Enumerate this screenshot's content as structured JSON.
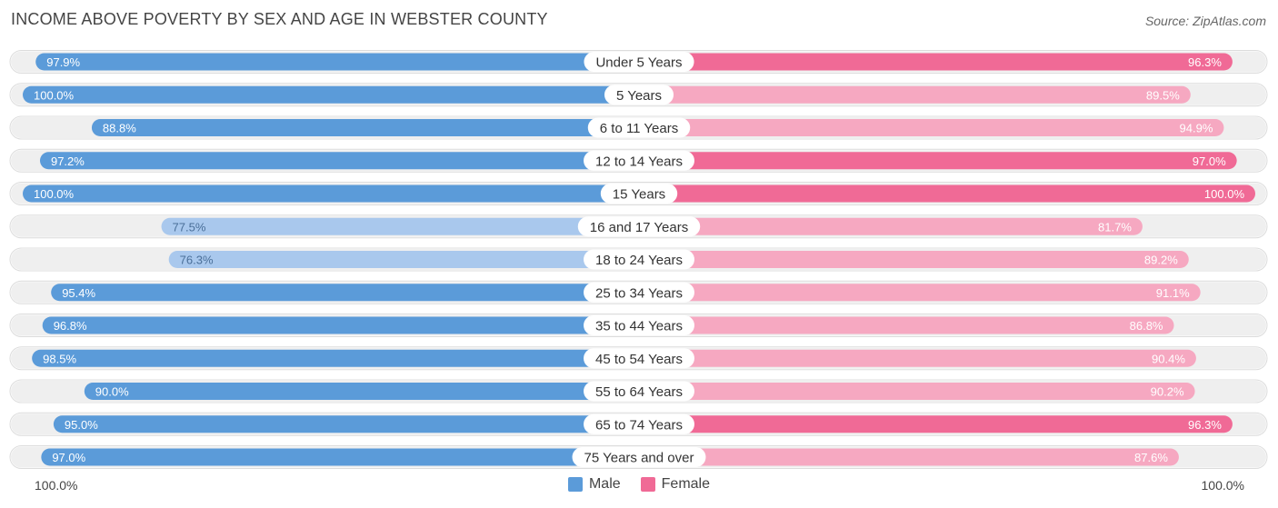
{
  "title": "INCOME ABOVE POVERTY BY SEX AND AGE IN WEBSTER COUNTY",
  "source": "Source: ZipAtlas.com",
  "axis": {
    "left_label": "100.0%",
    "right_label": "100.0%"
  },
  "legend": {
    "male": "Male",
    "female": "Female"
  },
  "colors": {
    "male_strong": "#5b9bd9",
    "male_light": "#a9c8ed",
    "female_strong": "#f06a96",
    "female_light": "#f6a8c1",
    "track": "#efefef"
  },
  "chart_data": {
    "type": "bar",
    "orientation": "horizontal-diverging",
    "xlim": [
      0,
      100
    ],
    "categories": [
      "Under 5 Years",
      "5 Years",
      "6 to 11 Years",
      "12 to 14 Years",
      "15 Years",
      "16 and 17 Years",
      "18 to 24 Years",
      "25 to 34 Years",
      "35 to 44 Years",
      "45 to 54 Years",
      "55 to 64 Years",
      "65 to 74 Years",
      "75 Years and over"
    ],
    "series": [
      {
        "name": "Male",
        "values": [
          97.9,
          100.0,
          88.8,
          97.2,
          100.0,
          77.5,
          76.3,
          95.4,
          96.8,
          98.5,
          90.0,
          95.0,
          97.0
        ]
      },
      {
        "name": "Female",
        "values": [
          96.3,
          89.5,
          94.9,
          97.0,
          100.0,
          81.7,
          89.2,
          91.1,
          86.8,
          90.4,
          90.2,
          96.3,
          87.6
        ]
      }
    ],
    "value_labels": {
      "male": [
        "97.9%",
        "100.0%",
        "88.8%",
        "97.2%",
        "100.0%",
        "77.5%",
        "76.3%",
        "95.4%",
        "96.8%",
        "98.5%",
        "90.0%",
        "95.0%",
        "97.0%"
      ],
      "female": [
        "96.3%",
        "89.5%",
        "94.9%",
        "97.0%",
        "100.0%",
        "81.7%",
        "89.2%",
        "91.1%",
        "86.8%",
        "90.4%",
        "90.2%",
        "96.3%",
        "87.6%"
      ]
    }
  }
}
